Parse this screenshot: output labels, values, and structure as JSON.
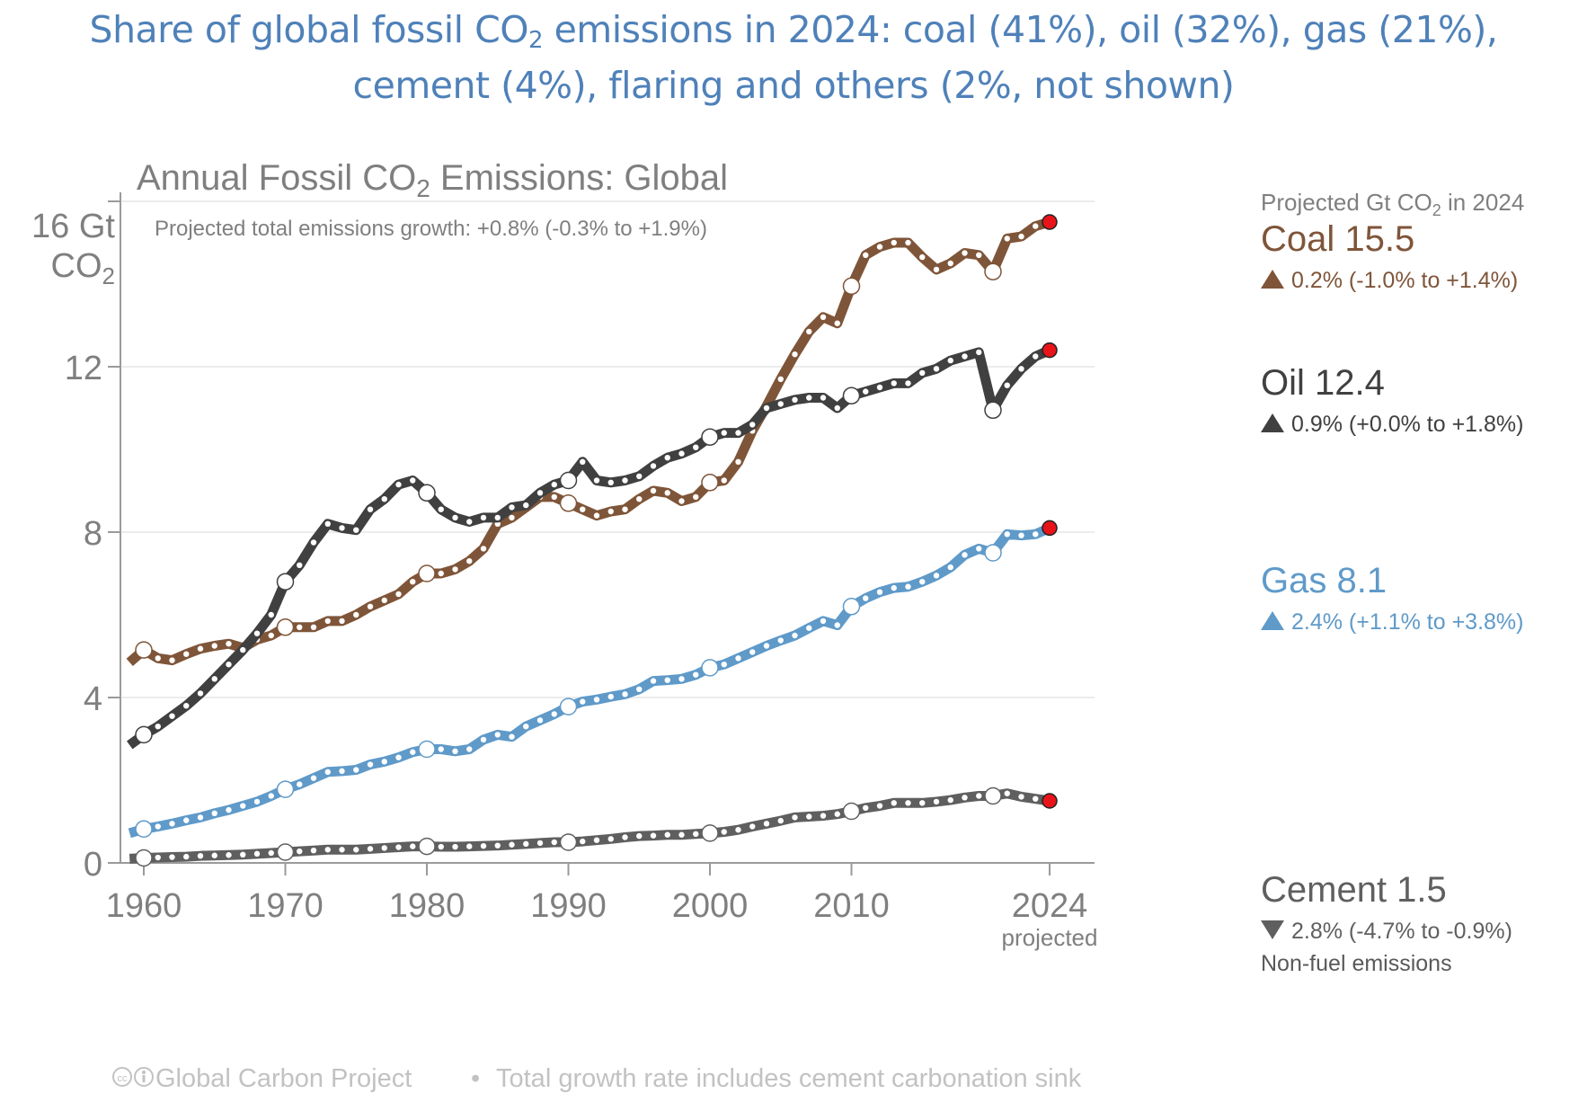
{
  "slide_title": {
    "line1_pre": "Share of global fossil CO",
    "line1_sub": "2",
    "line1_post": " emissions in 2024: coal (41%), oil (32%), gas (21%),",
    "line2": "cement (4%), flaring and others (2%, not shown)"
  },
  "chart_data": {
    "type": "line",
    "title_pre": "Annual Fossil CO",
    "title_sub": "2",
    "title_post": " Emissions: Global",
    "subtitle": "Projected total emissions growth: +0.8% (-0.3% to +1.9%)",
    "ylabel_line1": "16 Gt",
    "ylabel_line2_pre": "CO",
    "ylabel_line2_sub": "2",
    "xlabel": "",
    "ylim": [
      0,
      16
    ],
    "xlim": [
      1959,
      2024
    ],
    "yticks": [
      0,
      4,
      8,
      12,
      16
    ],
    "ytick_labels": [
      "0",
      "4",
      "8",
      "12",
      ""
    ],
    "xticks": [
      1960,
      1970,
      1980,
      1990,
      2000,
      2010,
      2024
    ],
    "xtick_labels": [
      "1960",
      "1970",
      "1980",
      "1990",
      "2000",
      "2010",
      "2024"
    ],
    "xtick_sublabel": "projected",
    "grid": "horizontal",
    "x": [
      1959,
      1960,
      1961,
      1962,
      1963,
      1964,
      1965,
      1966,
      1967,
      1968,
      1969,
      1970,
      1971,
      1972,
      1973,
      1974,
      1975,
      1976,
      1977,
      1978,
      1979,
      1980,
      1981,
      1982,
      1983,
      1984,
      1985,
      1986,
      1987,
      1988,
      1989,
      1990,
      1991,
      1992,
      1993,
      1994,
      1995,
      1996,
      1997,
      1998,
      1999,
      2000,
      2001,
      2002,
      2003,
      2004,
      2005,
      2006,
      2007,
      2008,
      2009,
      2010,
      2011,
      2012,
      2013,
      2014,
      2015,
      2016,
      2017,
      2018,
      2019,
      2020,
      2021,
      2022,
      2023,
      2024
    ],
    "series": [
      {
        "name": "Coal",
        "color": "#7f5539",
        "values": [
          4.85,
          5.15,
          4.95,
          4.9,
          5.05,
          5.18,
          5.25,
          5.3,
          5.2,
          5.4,
          5.5,
          5.7,
          5.7,
          5.7,
          5.85,
          5.85,
          6.0,
          6.2,
          6.35,
          6.5,
          6.8,
          7.0,
          7.0,
          7.1,
          7.3,
          7.6,
          8.2,
          8.35,
          8.6,
          8.85,
          8.85,
          8.7,
          8.55,
          8.4,
          8.5,
          8.55,
          8.8,
          9.0,
          8.95,
          8.75,
          8.85,
          9.2,
          9.25,
          9.7,
          10.45,
          11.05,
          11.7,
          12.3,
          12.85,
          13.2,
          13.05,
          13.95,
          14.7,
          14.9,
          15.0,
          15.0,
          14.65,
          14.35,
          14.5,
          14.75,
          14.7,
          14.3,
          15.1,
          15.15,
          15.4,
          15.5
        ]
      },
      {
        "name": "Oil",
        "color": "#404040",
        "values": [
          2.85,
          3.1,
          3.3,
          3.55,
          3.8,
          4.1,
          4.45,
          4.8,
          5.15,
          5.55,
          6.0,
          6.8,
          7.2,
          7.75,
          8.2,
          8.1,
          8.05,
          8.55,
          8.8,
          9.15,
          9.25,
          8.95,
          8.55,
          8.35,
          8.25,
          8.35,
          8.35,
          8.6,
          8.65,
          8.95,
          9.15,
          9.25,
          9.7,
          9.25,
          9.2,
          9.25,
          9.35,
          9.6,
          9.8,
          9.9,
          10.05,
          10.3,
          10.4,
          10.4,
          10.6,
          11.0,
          11.1,
          11.2,
          11.25,
          11.25,
          11.0,
          11.3,
          11.4,
          11.5,
          11.6,
          11.6,
          11.85,
          11.95,
          12.15,
          12.25,
          12.35,
          10.95,
          11.55,
          11.95,
          12.25,
          12.4
        ]
      },
      {
        "name": "Gas",
        "color": "#5f9ac9",
        "values": [
          0.72,
          0.82,
          0.88,
          0.95,
          1.03,
          1.1,
          1.2,
          1.28,
          1.38,
          1.48,
          1.62,
          1.78,
          1.9,
          2.05,
          2.2,
          2.22,
          2.25,
          2.38,
          2.45,
          2.55,
          2.68,
          2.75,
          2.75,
          2.7,
          2.75,
          2.98,
          3.1,
          3.05,
          3.3,
          3.45,
          3.6,
          3.78,
          3.9,
          3.95,
          4.02,
          4.08,
          4.2,
          4.4,
          4.42,
          4.45,
          4.55,
          4.72,
          4.8,
          4.95,
          5.1,
          5.25,
          5.38,
          5.5,
          5.68,
          5.85,
          5.75,
          6.2,
          6.4,
          6.55,
          6.65,
          6.68,
          6.8,
          6.95,
          7.15,
          7.45,
          7.6,
          7.5,
          7.95,
          7.92,
          7.95,
          8.1
        ]
      },
      {
        "name": "Cement",
        "color": "#5f5f5f",
        "values": [
          0.1,
          0.12,
          0.13,
          0.14,
          0.15,
          0.17,
          0.18,
          0.19,
          0.2,
          0.22,
          0.24,
          0.26,
          0.28,
          0.3,
          0.32,
          0.32,
          0.32,
          0.34,
          0.36,
          0.38,
          0.4,
          0.4,
          0.39,
          0.39,
          0.4,
          0.41,
          0.42,
          0.44,
          0.46,
          0.48,
          0.5,
          0.5,
          0.52,
          0.55,
          0.58,
          0.62,
          0.65,
          0.66,
          0.68,
          0.68,
          0.7,
          0.72,
          0.75,
          0.8,
          0.88,
          0.95,
          1.02,
          1.1,
          1.12,
          1.14,
          1.18,
          1.25,
          1.33,
          1.38,
          1.45,
          1.45,
          1.45,
          1.48,
          1.52,
          1.58,
          1.62,
          1.62,
          1.68,
          1.6,
          1.55,
          1.5
        ]
      }
    ]
  },
  "legend": {
    "header_pre": "Projected Gt CO",
    "header_sub": "2",
    "header_post": " in 2024",
    "items": [
      {
        "label": "Coal 15.5",
        "change": "0.2% (-1.0% to +1.4%)",
        "direction": "up",
        "color": "#7f5539",
        "change_color": "#7f5539"
      },
      {
        "label": "Oil 12.4",
        "change": "0.9% (+0.0% to +1.8%)",
        "direction": "up",
        "color": "#404040",
        "change_color": "#404040"
      },
      {
        "label": "Gas 8.1",
        "change": "2.4% (+1.1% to +3.8%)",
        "direction": "up",
        "color": "#5f9ac9",
        "change_color": "#5f9ac9"
      },
      {
        "label": "Cement 1.5",
        "change": "2.8% (-4.7% to -0.9%)",
        "direction": "down",
        "color": "#5f5f5f",
        "change_color": "#5f5f5f",
        "note": "Non-fuel emissions"
      }
    ]
  },
  "footer": {
    "cc_icon": "creative-commons-icon",
    "by_icon": "attribution-icon",
    "source": "Global Carbon Project",
    "bullet": "•",
    "note": "Total growth rate includes cement carbonation sink"
  },
  "projection_marker_color": "#e8141a",
  "highlight_years": [
    1960,
    1970,
    1980,
    1990,
    2000,
    2010,
    2020
  ]
}
